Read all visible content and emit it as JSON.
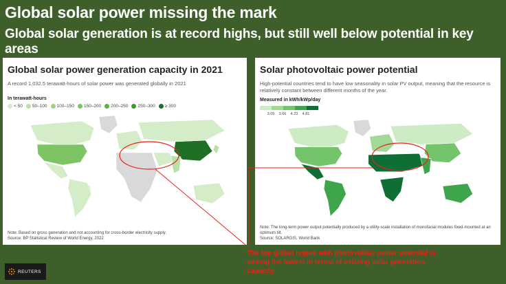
{
  "header": {
    "title": "Global solar power missing the mark",
    "subtitle": "Global solar generation is at record highs, but still well below potential in key areas"
  },
  "left_panel": {
    "title": "Global solar power generation capacity in 2021",
    "description": "A record 1,032.5 terawatt-hours of solar power was generated globally in 2021",
    "legend_title": "In terawatt-hours",
    "note": "Note: Based on gross generation and not accounting for cross-border electricity supply.",
    "source": "Source: BP Statistical Review of World Energy, 2022"
  },
  "right_panel": {
    "title": "Solar photovoltaic power potential",
    "description": "High-potential countries tend to have low seasonality in solar PV output, meaning that the resource is relatively constant between different months of the year.",
    "legend_title": "Measured in kWh/kWp/day",
    "note": "Note: The long-term power output potentially produced by a utility-scale installation of monofacial modules fixed-mounted at an optimum tilt.",
    "source": "Source: SOLARGIS, World Bank"
  },
  "callout": {
    "text": "The top global region with photovoltaic power potential is among the lowest in terms of existing solar generation capacity"
  },
  "logo": {
    "text": "REUTERS"
  },
  "colors": {
    "background": "#3e5f2a",
    "callout": "#e8201a",
    "no_data": "#d9d9d9",
    "generation_scale": [
      "#d4ecc7",
      "#b9e0a6",
      "#9dd385",
      "#7fc464",
      "#5fb047",
      "#3f9632",
      "#1f6f24"
    ],
    "potential_scale": [
      "#cdebc4",
      "#a3d996",
      "#74c46c",
      "#3fa54c",
      "#0e6e36"
    ]
  },
  "chart_data": [
    {
      "type": "choropleth",
      "title": "Global solar power generation capacity in 2021",
      "legend_title": "In terawatt-hours",
      "legend": [
        "< 50",
        "50–100",
        "100–150",
        "150–200",
        "200–250",
        "250–300",
        "≥ 300"
      ],
      "regions": [
        {
          "name": "China",
          "bin": 6
        },
        {
          "name": "United States",
          "bin": 3
        },
        {
          "name": "Japan",
          "bin": 1
        },
        {
          "name": "India",
          "bin": 1
        },
        {
          "name": "Germany",
          "bin": 0
        },
        {
          "name": "Australia",
          "bin": 0
        },
        {
          "name": "Brazil",
          "bin": 0
        },
        {
          "name": "Canada",
          "bin": 0
        },
        {
          "name": "Russia",
          "bin": 0
        },
        {
          "name": "Mexico",
          "bin": 0
        },
        {
          "name": "Europe (other)",
          "bin": 0
        },
        {
          "name": "Middle East",
          "bin": 0
        },
        {
          "name": "South America (other)",
          "bin": 0
        },
        {
          "name": "Africa",
          "bin": -1
        },
        {
          "name": "Greenland",
          "bin": -1
        }
      ]
    },
    {
      "type": "choropleth",
      "title": "Solar photovoltaic power potential",
      "legend_title": "Measured in kWh/kWp/day",
      "legend_ticks": [
        "3.09",
        "3.66",
        "4.23",
        "4.81"
      ],
      "regions": [
        {
          "name": "North Africa & Middle East",
          "bin": 4
        },
        {
          "name": "Southern Africa",
          "bin": 4
        },
        {
          "name": "Mexico & Andes",
          "bin": 4
        },
        {
          "name": "Australia",
          "bin": 3
        },
        {
          "name": "South America (other)",
          "bin": 3
        },
        {
          "name": "United States",
          "bin": 2
        },
        {
          "name": "China",
          "bin": 2
        },
        {
          "name": "India",
          "bin": 3
        },
        {
          "name": "Europe",
          "bin": 1
        },
        {
          "name": "Russia",
          "bin": 0
        },
        {
          "name": "Canada",
          "bin": 0
        },
        {
          "name": "Greenland",
          "bin": -1
        }
      ]
    }
  ]
}
